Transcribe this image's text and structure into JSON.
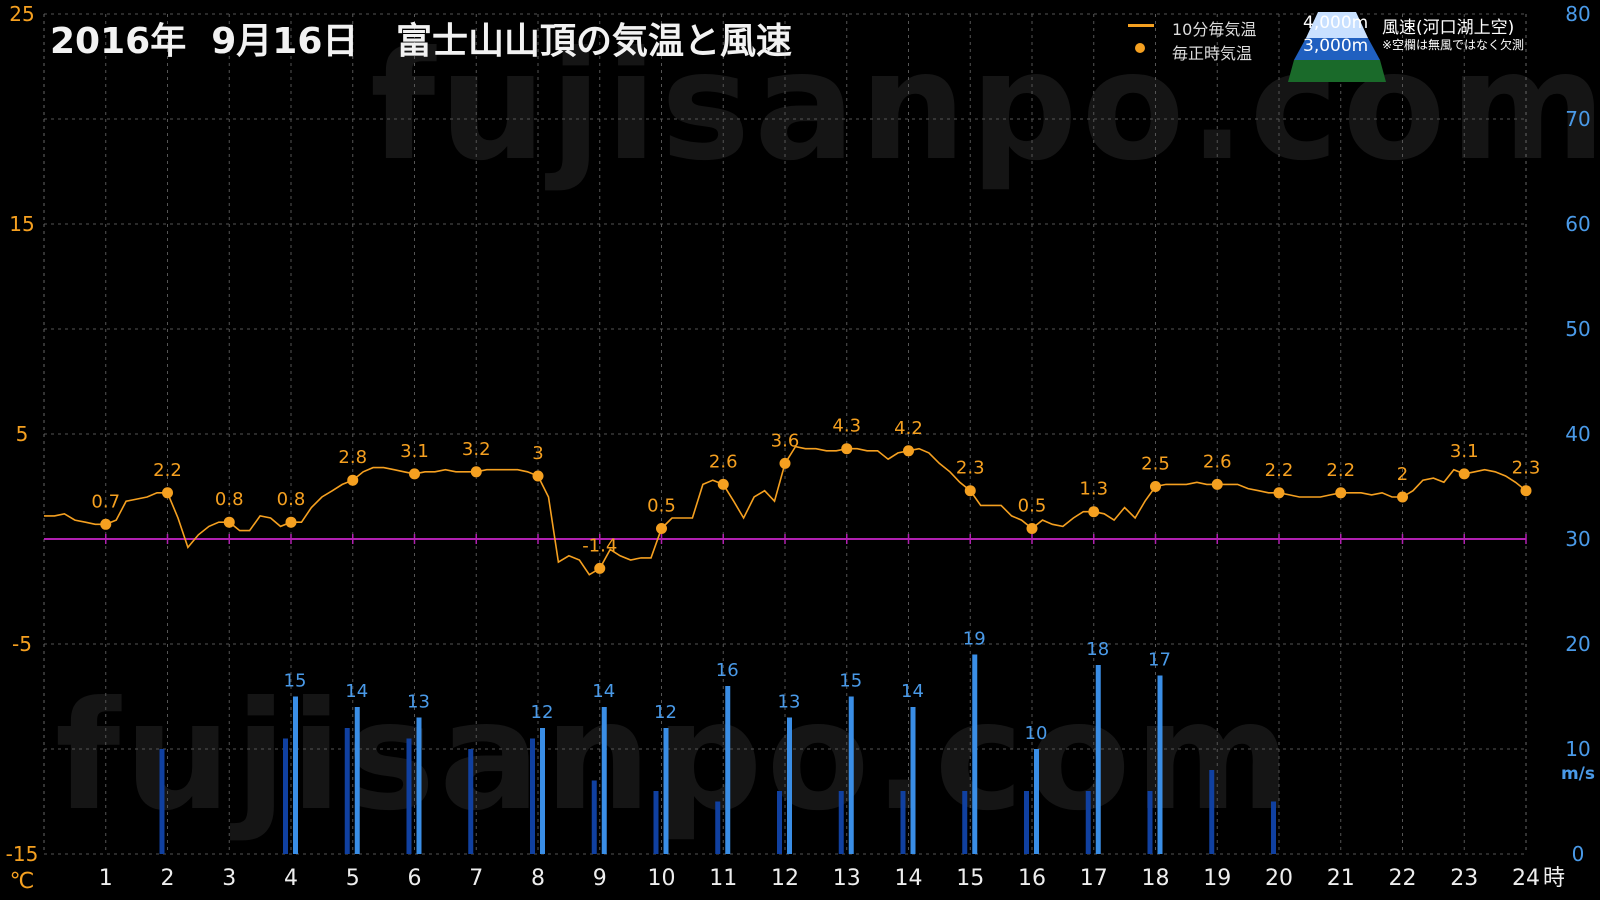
{
  "title": "2016年  9月16日   富士山山頂の気温と風速",
  "watermark": "fujisanpo.com",
  "legend": {
    "temp10": "10分毎気温",
    "tempHourly": "毎正時気温",
    "alt4000": "4,000m",
    "alt3000": "3,000m",
    "windLabel": "風速(河口湖上空)",
    "windNote": "※空欄は無風ではなく欠測"
  },
  "colors": {
    "temperature": "#f5a020",
    "wind4000": "#3a8ee6",
    "wind3000": "#1040a0",
    "zeroLine": "#b020b0",
    "leftAxisText": "#f5a020",
    "rightAxisText": "#4a9ae8",
    "grid": "#555555"
  },
  "chart_data": {
    "type": "line+bar",
    "x": [
      1,
      2,
      3,
      4,
      5,
      6,
      7,
      8,
      9,
      10,
      11,
      12,
      13,
      14,
      15,
      16,
      17,
      18,
      19,
      20,
      21,
      22,
      23,
      24
    ],
    "xlabel": "時",
    "yleft": {
      "unit": "℃",
      "ylim": [
        -15,
        25
      ],
      "ticks": [
        -15,
        -5,
        5,
        15,
        25
      ]
    },
    "yright": {
      "unit": "m/s",
      "ylim": [
        0,
        80
      ],
      "ticks": [
        0,
        10,
        20,
        30,
        40,
        50,
        60,
        70,
        80
      ]
    },
    "hourlyTemperature": [
      0.7,
      2.2,
      0.8,
      0.8,
      2.8,
      3.1,
      3.2,
      3.0,
      -1.4,
      0.5,
      2.6,
      3.6,
      4.3,
      4.2,
      2.3,
      0.5,
      1.3,
      2.5,
      2.6,
      2.2,
      2.2,
      2.0,
      3.1,
      2.3
    ],
    "hourlyTemperatureLabels": [
      "0.7",
      "2.2",
      "0.8",
      "0.8",
      "2.8",
      "3.1",
      "3.2",
      "3",
      "-1.4",
      "0.5",
      "2.6",
      "3.6",
      "4.3",
      "4.2",
      "2.3",
      "0.5",
      "1.3",
      "2.5",
      "2.6",
      "2.2",
      "2.2",
      "2",
      "3.1",
      "2.3"
    ],
    "tenMinuteTemperature": {
      "x": [
        0.0,
        0.17,
        0.33,
        0.5,
        0.67,
        0.83,
        1.0,
        1.17,
        1.33,
        1.5,
        1.67,
        1.83,
        2.0,
        2.17,
        2.33,
        2.5,
        2.67,
        2.83,
        3.0,
        3.17,
        3.33,
        3.5,
        3.67,
        3.83,
        4.0,
        4.17,
        4.33,
        4.5,
        4.67,
        4.83,
        5.0,
        5.17,
        5.33,
        5.5,
        5.67,
        5.83,
        6.0,
        6.17,
        6.33,
        6.5,
        6.67,
        6.83,
        7.0,
        7.17,
        7.33,
        7.5,
        7.67,
        7.83,
        8.0,
        8.17,
        8.33,
        8.5,
        8.67,
        8.83,
        9.0,
        9.17,
        9.33,
        9.5,
        9.67,
        9.83,
        10.0,
        10.17,
        10.33,
        10.5,
        10.67,
        10.83,
        11.0,
        11.17,
        11.33,
        11.5,
        11.67,
        11.83,
        12.0,
        12.17,
        12.33,
        12.5,
        12.67,
        12.83,
        13.0,
        13.17,
        13.33,
        13.5,
        13.67,
        13.83,
        14.0,
        14.17,
        14.33,
        14.5,
        14.67,
        14.83,
        15.0,
        15.17,
        15.33,
        15.5,
        15.67,
        15.83,
        16.0,
        16.17,
        16.33,
        16.5,
        16.67,
        16.83,
        17.0,
        17.17,
        17.33,
        17.5,
        17.67,
        17.83,
        18.0,
        18.17,
        18.33,
        18.5,
        18.67,
        18.83,
        19.0,
        19.17,
        19.33,
        19.5,
        19.67,
        19.83,
        20.0,
        20.17,
        20.33,
        20.5,
        20.67,
        20.83,
        21.0,
        21.17,
        21.33,
        21.5,
        21.67,
        21.83,
        22.0,
        22.17,
        22.33,
        22.5,
        22.67,
        22.83,
        23.0,
        23.17,
        23.33,
        23.5,
        23.67,
        23.83,
        24.0
      ],
      "y": [
        1.1,
        1.1,
        1.2,
        0.9,
        0.8,
        0.7,
        0.7,
        0.9,
        1.8,
        1.9,
        2.0,
        2.2,
        2.2,
        1.0,
        -0.4,
        0.2,
        0.6,
        0.8,
        0.8,
        0.4,
        0.4,
        1.1,
        1.0,
        0.6,
        0.8,
        0.8,
        1.5,
        2.0,
        2.3,
        2.6,
        2.8,
        3.2,
        3.4,
        3.4,
        3.3,
        3.2,
        3.1,
        3.2,
        3.2,
        3.3,
        3.2,
        3.2,
        3.2,
        3.3,
        3.3,
        3.3,
        3.3,
        3.2,
        3.0,
        2.0,
        -1.1,
        -0.8,
        -1.0,
        -1.7,
        -1.4,
        -0.5,
        -0.8,
        -1.0,
        -0.9,
        -0.9,
        0.5,
        1.0,
        1.0,
        1.0,
        2.6,
        2.8,
        2.6,
        1.8,
        1.0,
        2.0,
        2.3,
        1.8,
        3.6,
        4.4,
        4.3,
        4.3,
        4.2,
        4.2,
        4.3,
        4.3,
        4.2,
        4.2,
        3.8,
        4.1,
        4.2,
        4.3,
        4.1,
        3.6,
        3.2,
        2.7,
        2.3,
        1.6,
        1.6,
        1.6,
        1.1,
        0.9,
        0.5,
        0.9,
        0.7,
        0.6,
        1.0,
        1.3,
        1.3,
        1.2,
        0.9,
        1.5,
        1.0,
        1.8,
        2.5,
        2.6,
        2.6,
        2.6,
        2.7,
        2.6,
        2.6,
        2.6,
        2.6,
        2.4,
        2.3,
        2.2,
        2.2,
        2.1,
        2.0,
        2.0,
        2.0,
        2.1,
        2.2,
        2.2,
        2.2,
        2.1,
        2.2,
        2.0,
        2.0,
        2.3,
        2.8,
        2.9,
        2.7,
        3.3,
        3.1,
        3.2,
        3.3,
        3.2,
        3.0,
        2.7,
        2.3
      ]
    },
    "series": [
      {
        "name": "4,000m",
        "values": [
          null,
          null,
          null,
          15,
          14,
          13,
          null,
          12,
          14,
          12,
          16,
          13,
          15,
          14,
          19,
          10,
          18,
          17,
          null,
          null,
          null,
          null,
          null,
          null
        ],
        "labels": [
          "",
          "",
          "",
          "15",
          "14",
          "13",
          "",
          "12",
          "14",
          "12",
          "16",
          "13",
          "15",
          "14",
          "19",
          "10",
          "18",
          "17",
          "",
          "",
          "",
          "",
          "",
          ""
        ]
      },
      {
        "name": "3,000m",
        "values": [
          null,
          10,
          null,
          11,
          12,
          11,
          10,
          11,
          7,
          6,
          5,
          6,
          6,
          6,
          6,
          6,
          6,
          6,
          8,
          5,
          null,
          null,
          null,
          null
        ]
      }
    ]
  }
}
